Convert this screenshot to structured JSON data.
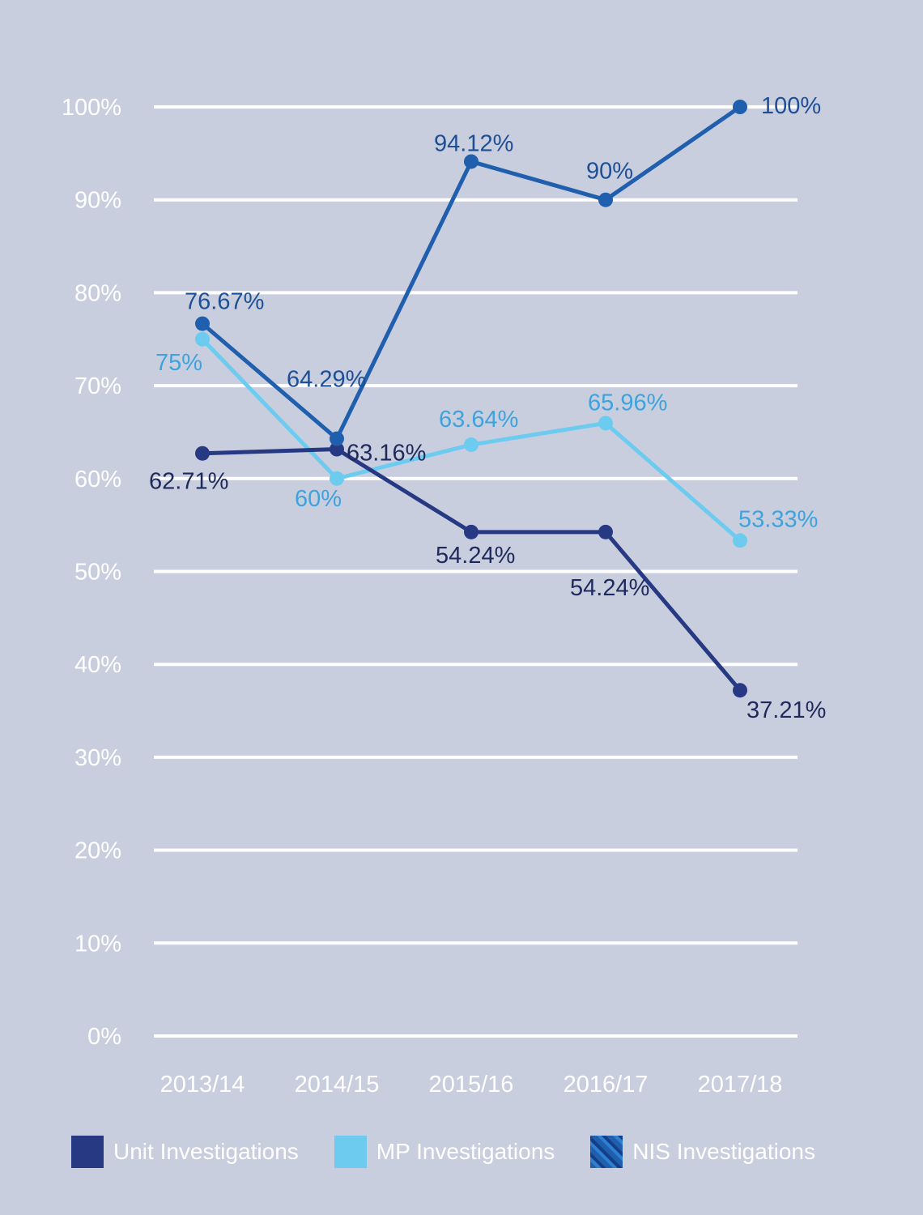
{
  "chart_data": {
    "type": "line",
    "title": "",
    "xlabel": "",
    "ylabel": "",
    "categories": [
      "2013/14",
      "2014/15",
      "2015/16",
      "2016/17",
      "2017/18"
    ],
    "ylim": [
      0,
      100
    ],
    "yticks": [
      0,
      10,
      20,
      30,
      40,
      50,
      60,
      70,
      80,
      90,
      100
    ],
    "ytick_labels": [
      "0%",
      "10%",
      "20%",
      "30%",
      "40%",
      "50%",
      "60%",
      "70%",
      "80%",
      "90%",
      "100%"
    ],
    "grid": true,
    "legend_position": "bottom",
    "series": [
      {
        "name": "Unit Investigations",
        "color": "#283983",
        "values": [
          62.71,
          63.16,
          54.24,
          54.24,
          37.21
        ],
        "labels": [
          "62.71%",
          "63.16%",
          "54.24%",
          "54.24%",
          "37.21%"
        ]
      },
      {
        "name": "MP Investigations",
        "color": "#6dcbf0",
        "values": [
          75,
          60,
          63.64,
          65.96,
          53.33
        ],
        "labels": [
          "75%",
          "60%",
          "63.64%",
          "65.96%",
          "53.33%"
        ]
      },
      {
        "name": "NIS Investigations",
        "color": "#1f5fae",
        "values": [
          76.67,
          64.29,
          94.12,
          90,
          100
        ],
        "labels": [
          "76.67%",
          "64.29%",
          "94.12%",
          "90%",
          "100%"
        ]
      }
    ]
  },
  "colors": {
    "background": "#c9cedf",
    "gridline": "#ffffff",
    "tick_text": "#ffffff",
    "mp_label_text": "#3ea3dd"
  }
}
